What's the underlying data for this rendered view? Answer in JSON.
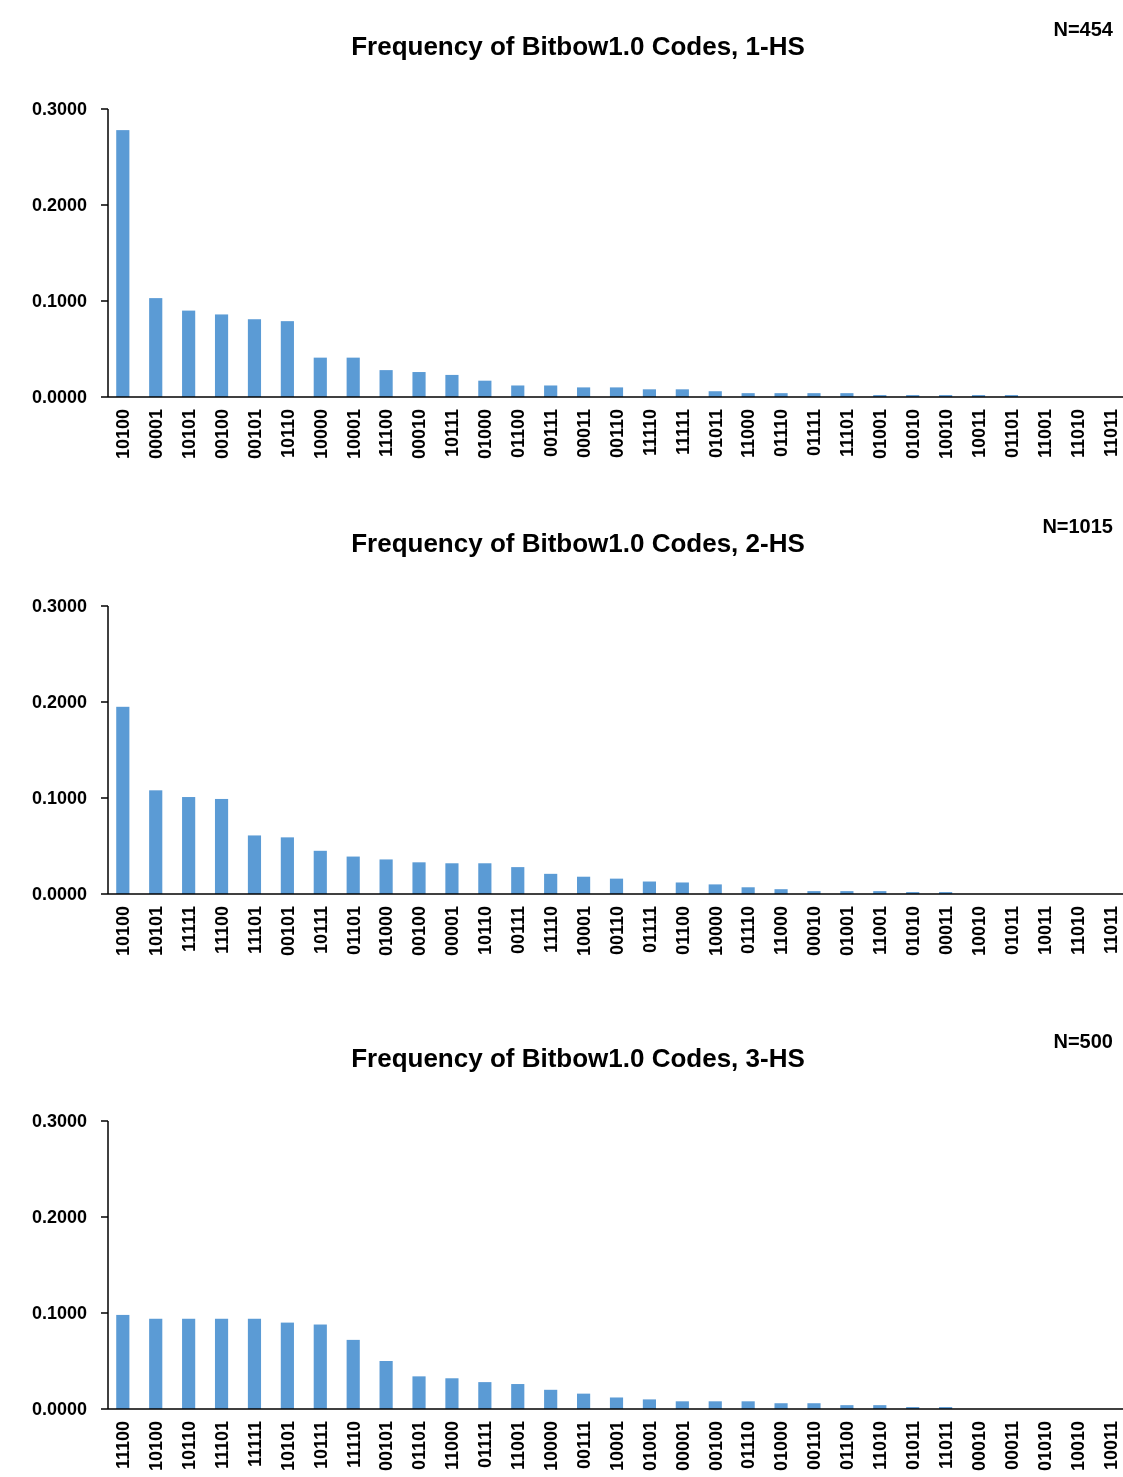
{
  "chart_data": [
    {
      "type": "bar",
      "title": "Frequency of Bitbow1.0 Codes, 1-HS",
      "annotations": [
        "N=454"
      ],
      "color": "#5b9bd5",
      "categories": [
        "10100",
        "00001",
        "10101",
        "00100",
        "00101",
        "10110",
        "10000",
        "10001",
        "11100",
        "00010",
        "10111",
        "01000",
        "01100",
        "00111",
        "00011",
        "00110",
        "11110",
        "11111",
        "01011",
        "11000",
        "01110",
        "01111",
        "11101",
        "01001",
        "01010",
        "10010",
        "10011",
        "01101",
        "11001",
        "11010",
        "11011"
      ],
      "values": [
        0.278,
        0.103,
        0.09,
        0.086,
        0.081,
        0.079,
        0.041,
        0.041,
        0.028,
        0.026,
        0.023,
        0.017,
        0.012,
        0.012,
        0.01,
        0.01,
        0.008,
        0.008,
        0.006,
        0.004,
        0.004,
        0.004,
        0.004,
        0.002,
        0.002,
        0.002,
        0.002,
        0.002,
        0,
        0,
        0
      ],
      "ylim": [
        0,
        0.3
      ],
      "yticks": [
        {
          "value": 0,
          "label": "0.0000"
        },
        {
          "value": 0.1,
          "label": "0.1000"
        },
        {
          "value": 0.2,
          "label": "0.2000"
        },
        {
          "value": 0.3,
          "label": "0.3000"
        }
      ],
      "grid": false
    },
    {
      "type": "bar",
      "title": "Frequency of Bitbow1.0 Codes, 2-HS",
      "annotations": [
        "N=1015"
      ],
      "color": "#5b9bd5",
      "categories": [
        "10100",
        "10101",
        "11111",
        "11100",
        "11101",
        "00101",
        "10111",
        "01101",
        "01000",
        "00100",
        "00001",
        "10110",
        "00111",
        "11110",
        "10001",
        "00110",
        "01111",
        "01100",
        "10000",
        "01110",
        "11000",
        "00010",
        "01001",
        "11001",
        "01010",
        "00011",
        "10010",
        "01011",
        "10011",
        "11010",
        "11011"
      ],
      "values": [
        0.195,
        0.108,
        0.101,
        0.099,
        0.061,
        0.059,
        0.045,
        0.039,
        0.036,
        0.033,
        0.032,
        0.032,
        0.028,
        0.021,
        0.018,
        0.016,
        0.013,
        0.012,
        0.01,
        0.007,
        0.005,
        0.003,
        0.003,
        0.003,
        0.002,
        0.002,
        0,
        0,
        0,
        0,
        0
      ],
      "ylim": [
        0,
        0.3
      ],
      "yticks": [
        {
          "value": 0,
          "label": "0.0000"
        },
        {
          "value": 0.1,
          "label": "0.1000"
        },
        {
          "value": 0.2,
          "label": "0.2000"
        },
        {
          "value": 0.3,
          "label": "0.3000"
        }
      ],
      "grid": false
    },
    {
      "type": "bar",
      "title": "Frequency of Bitbow1.0 Codes, 3-HS",
      "annotations": [
        "N=500"
      ],
      "color": "#5b9bd5",
      "categories": [
        "11100",
        "10100",
        "10110",
        "11101",
        "11111",
        "10101",
        "10111",
        "11110",
        "00101",
        "01101",
        "11000",
        "01111",
        "11001",
        "10000",
        "00111",
        "10001",
        "01001",
        "00001",
        "00100",
        "01110",
        "01000",
        "00110",
        "01100",
        "11010",
        "01011",
        "11011",
        "00010",
        "00011",
        "01010",
        "10010",
        "10011"
      ],
      "values": [
        0.098,
        0.094,
        0.094,
        0.094,
        0.094,
        0.09,
        0.088,
        0.072,
        0.05,
        0.034,
        0.032,
        0.028,
        0.026,
        0.02,
        0.016,
        0.012,
        0.01,
        0.008,
        0.008,
        0.008,
        0.006,
        0.006,
        0.004,
        0.004,
        0.002,
        0.002,
        0,
        0,
        0,
        0,
        0
      ],
      "ylim": [
        0,
        0.3
      ],
      "yticks": [
        {
          "value": 0,
          "label": "0.0000"
        },
        {
          "value": 0.1,
          "label": "0.1000"
        },
        {
          "value": 0.2,
          "label": "0.2000"
        },
        {
          "value": 0.3,
          "label": "0.3000"
        }
      ],
      "grid": false
    }
  ]
}
